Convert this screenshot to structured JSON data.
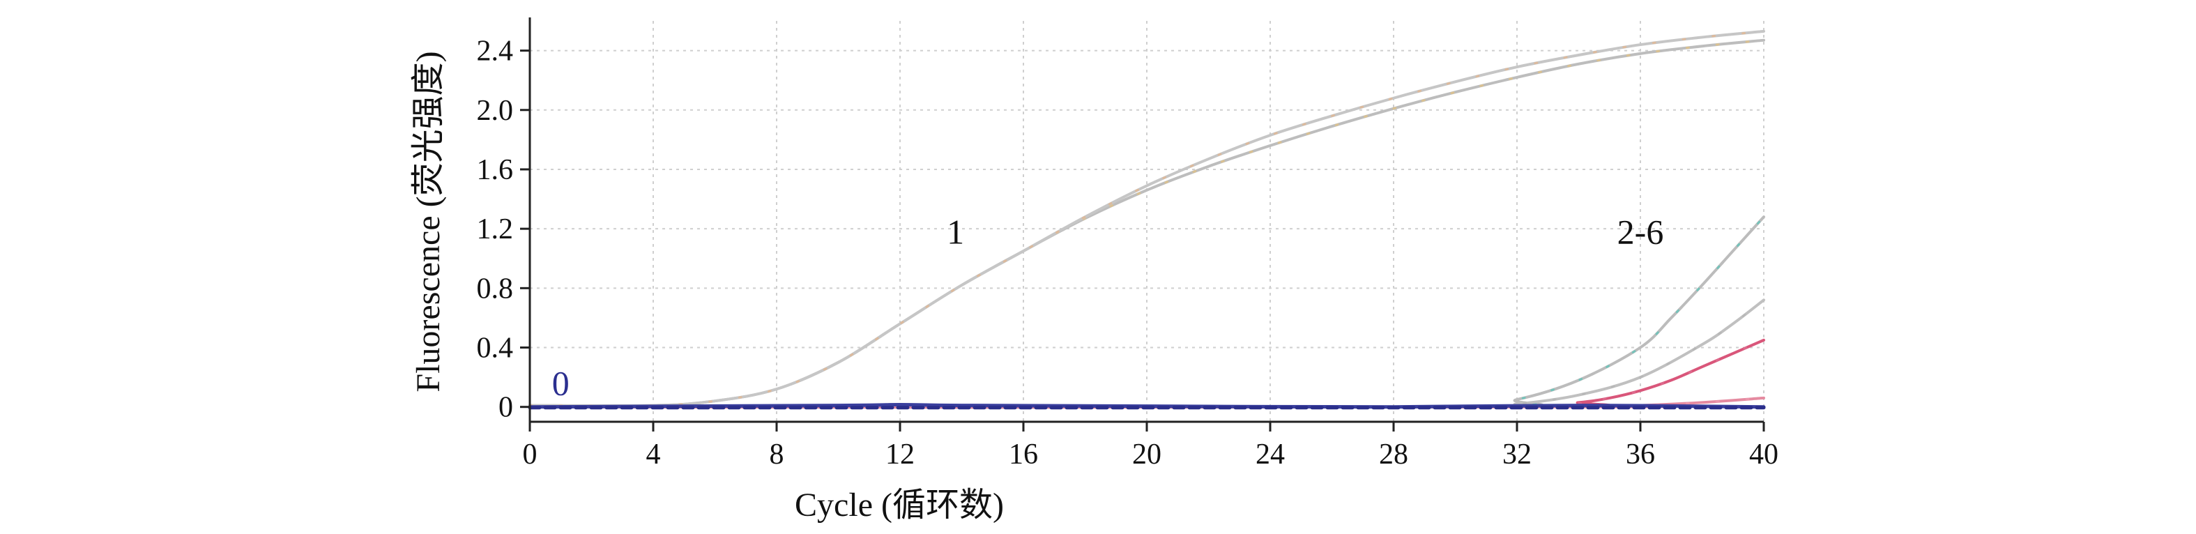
{
  "chart_data": {
    "type": "line",
    "xlabel": "Cycle (循环数)",
    "ylabel": "Fluorescence (荧光强度)",
    "xlim": [
      0,
      40
    ],
    "ylim": [
      -0.1,
      2.6
    ],
    "xticks": [
      0,
      4,
      8,
      12,
      16,
      20,
      24,
      28,
      32,
      36,
      40
    ],
    "yticks": [
      0,
      0.4,
      0.8,
      1.2,
      1.6,
      2.0,
      2.4
    ],
    "xtick_labels": [
      "0",
      "4",
      "8",
      "12",
      "16",
      "20",
      "24",
      "28",
      "32",
      "36",
      "40"
    ],
    "ytick_labels": [
      "0",
      "0.4",
      "0.8",
      "1.2",
      "1.6",
      "2.0",
      "2.4"
    ],
    "grid": true,
    "annotations": [
      {
        "text": "1",
        "x": 13.8,
        "y": 1.1,
        "color": "#111111"
      },
      {
        "text": "2-6",
        "x": 36.0,
        "y": 1.1,
        "color": "#111111"
      },
      {
        "text": "0",
        "x": 1.0,
        "y": 0.08,
        "color": "#2b2f8f"
      }
    ],
    "series": [
      {
        "color": "#bdbdbd",
        "accent": "#f2c46e",
        "x": [
          0,
          4,
          6,
          8,
          10,
          12,
          14,
          16,
          18,
          20,
          22,
          24,
          26,
          28,
          30,
          32,
          34,
          36,
          38,
          40
        ],
        "values": [
          0.01,
          0.01,
          0.04,
          0.12,
          0.3,
          0.56,
          0.82,
          1.05,
          1.27,
          1.46,
          1.62,
          1.76,
          1.89,
          2.01,
          2.12,
          2.22,
          2.31,
          2.38,
          2.43,
          2.47
        ]
      },
      {
        "color": "#c6c6c6",
        "accent": "#f0b07a",
        "x": [
          0,
          4,
          6,
          8,
          10,
          12,
          14,
          16,
          18,
          20,
          22,
          24,
          26,
          28,
          30,
          32,
          34,
          36,
          38,
          40
        ],
        "values": [
          0.01,
          0.01,
          0.04,
          0.12,
          0.3,
          0.56,
          0.82,
          1.05,
          1.28,
          1.49,
          1.67,
          1.83,
          1.96,
          2.08,
          2.19,
          2.29,
          2.37,
          2.44,
          2.49,
          2.53
        ]
      },
      {
        "color": "#bcbcbc",
        "accent": "#39c9b8",
        "x": [
          0,
          30,
          32,
          34,
          36,
          37,
          38,
          39,
          40
        ],
        "values": [
          0.0,
          0.0,
          0.05,
          0.18,
          0.4,
          0.6,
          0.82,
          1.05,
          1.28
        ]
      },
      {
        "color": "#c0c0c0",
        "accent": "#b0b0b0",
        "x": [
          0,
          30,
          32,
          34,
          36,
          38,
          39,
          40
        ],
        "values": [
          0.0,
          0.0,
          0.02,
          0.08,
          0.2,
          0.42,
          0.56,
          0.72
        ]
      },
      {
        "color": "#d9567a",
        "accent": "#e07a9a",
        "x": [
          0,
          32,
          34,
          35,
          36,
          37,
          38,
          39,
          40
        ],
        "values": [
          0.0,
          0.0,
          0.03,
          0.06,
          0.11,
          0.18,
          0.27,
          0.36,
          0.45
        ]
      },
      {
        "color": "#e58aa0",
        "accent": "#f2a0b5",
        "x": [
          0,
          34,
          36,
          38,
          40
        ],
        "values": [
          0.0,
          0.0,
          0.01,
          0.03,
          0.06
        ]
      },
      {
        "color": "#3a3f9e",
        "accent": "#3a3f9e",
        "x": [
          0,
          10,
          12,
          14,
          20,
          28,
          34,
          40
        ],
        "values": [
          0.0,
          0.01,
          0.015,
          0.01,
          0.005,
          0.0,
          0.01,
          0.0
        ]
      },
      {
        "color": "#2a2e8a",
        "accent": "#2a2e8a",
        "x": [
          0,
          40
        ],
        "values": [
          -0.005,
          -0.005
        ]
      }
    ]
  }
}
